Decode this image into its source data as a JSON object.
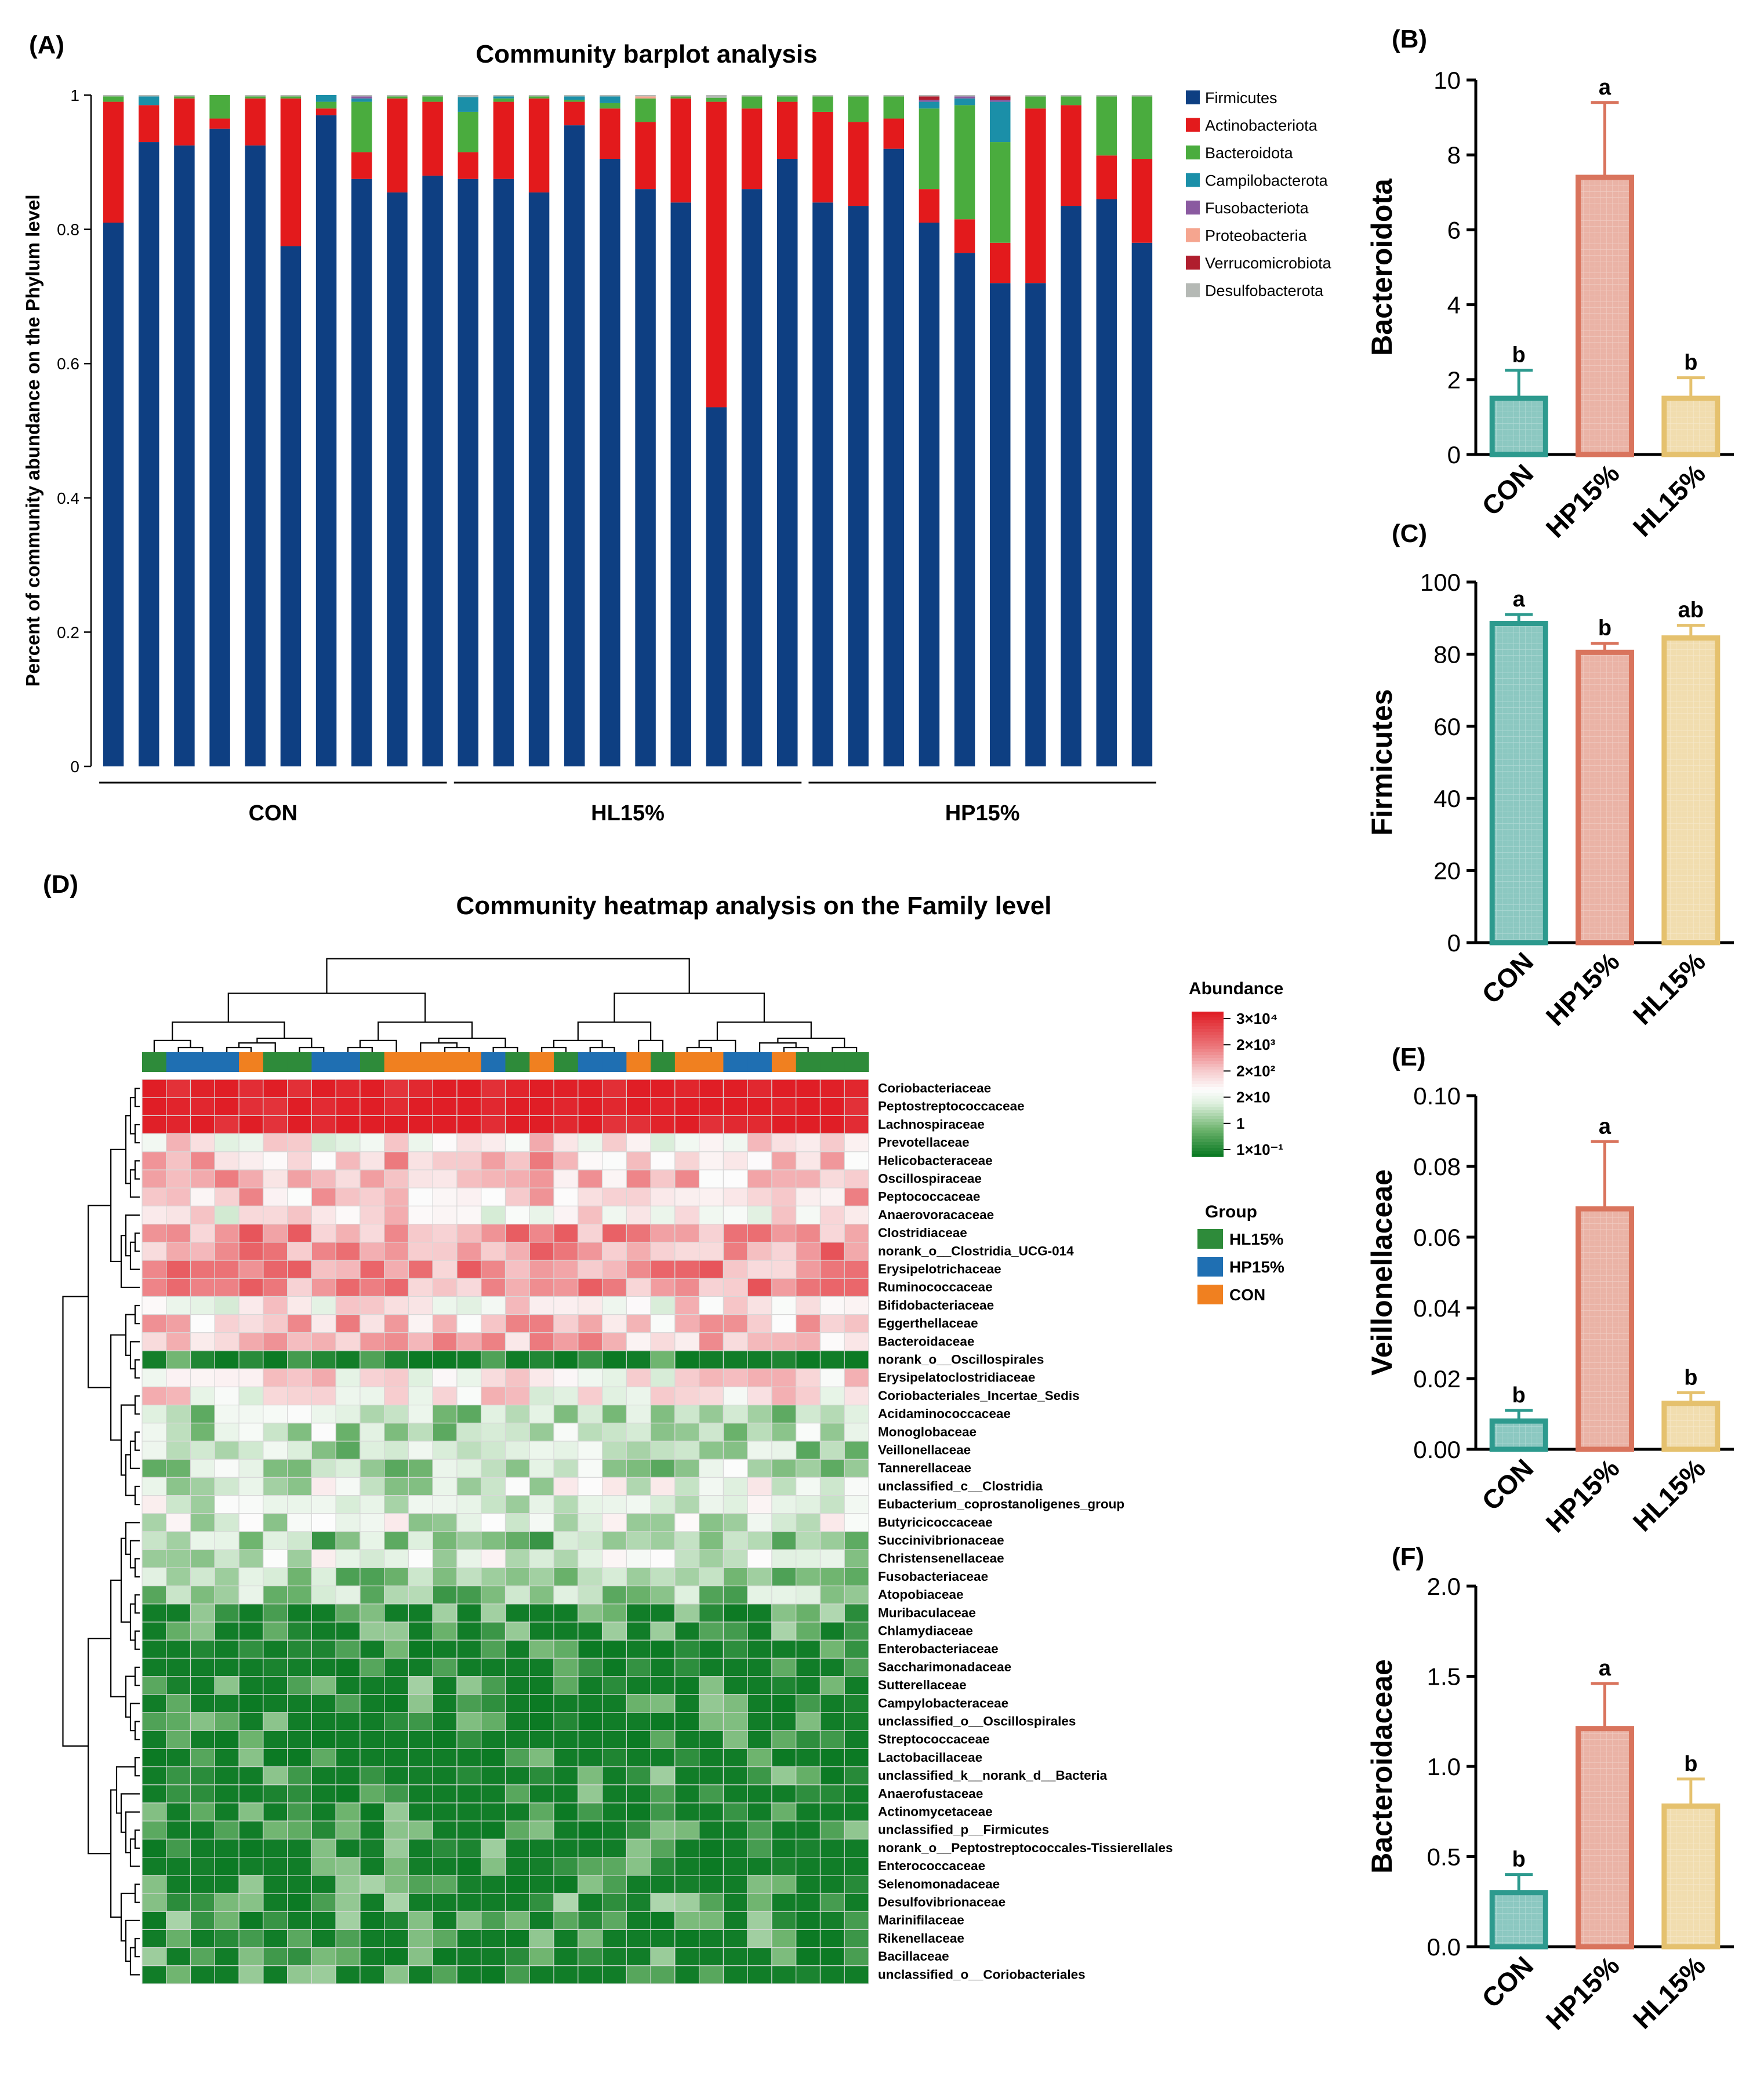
{
  "colors": {
    "firmicutes": "#0e3f82",
    "actino": "#e31a1c",
    "bacteroidota": "#4aac3e",
    "campylo": "#1b8fa8",
    "fuso": "#8a5aa0",
    "proteo": "#f5a58f",
    "verruco": "#b01e2e",
    "desulfo": "#b5b9b5",
    "con": "#2d9a8e",
    "hp": "#d9745d",
    "hl": "#e5c16e",
    "grp_hl": "#2e8b3a",
    "grp_hp": "#1f6fb2",
    "grp_con": "#f08020"
  },
  "chart_data": [
    {
      "panel": "(A)",
      "type": "bar",
      "stacked": true,
      "title": "Community barplot analysis",
      "ylabel": "Percent of community abundance on the Phylum level",
      "ylim": [
        0,
        1
      ],
      "yticks": [
        "0",
        "0.2",
        "0.4",
        "0.6",
        "0.8",
        "1"
      ],
      "groups": [
        "CON",
        "HL15%",
        "HP15%"
      ],
      "group_sizes": [
        10,
        10,
        10
      ],
      "legend": [
        "Firmicutes",
        "Actinobacteriota",
        "Bacteroidota",
        "Campilobacterota",
        "Fusobacteriota",
        "Proteobacteria",
        "Verrucomicrobiota",
        "Desulfobacterota"
      ],
      "series": [
        {
          "name": "Firmicutes",
          "values": [
            0.81,
            0.93,
            0.925,
            0.95,
            0.925,
            0.775,
            0.97,
            0.875,
            0.855,
            0.88,
            0.875,
            0.875,
            0.855,
            0.955,
            0.905,
            0.86,
            0.84,
            0.535,
            0.86,
            0.905,
            0.84,
            0.835,
            0.92,
            0.81,
            0.765,
            0.72,
            0.72,
            0.835,
            0.845,
            0.78
          ]
        },
        {
          "name": "Actinobacteriota",
          "values": [
            0.18,
            0.055,
            0.07,
            0.015,
            0.07,
            0.22,
            0.01,
            0.04,
            0.14,
            0.11,
            0.04,
            0.115,
            0.14,
            0.035,
            0.075,
            0.1,
            0.155,
            0.455,
            0.12,
            0.085,
            0.135,
            0.125,
            0.045,
            0.05,
            0.05,
            0.06,
            0.26,
            0.15,
            0.065,
            0.125
          ]
        },
        {
          "name": "Bacteroidota",
          "values": [
            0.008,
            0.0,
            0.003,
            0.035,
            0.003,
            0.003,
            0.01,
            0.075,
            0.003,
            0.008,
            0.06,
            0.005,
            0.003,
            0.003,
            0.008,
            0.035,
            0.003,
            0.006,
            0.018,
            0.008,
            0.023,
            0.038,
            0.033,
            0.12,
            0.17,
            0.15,
            0.018,
            0.013,
            0.088,
            0.093
          ]
        },
        {
          "name": "Campilobacterota",
          "values": [
            0.0,
            0.013,
            0.0,
            0.0,
            0.0,
            0.0,
            0.01,
            0.005,
            0.0,
            0.0,
            0.022,
            0.003,
            0.0,
            0.005,
            0.01,
            0.0,
            0.0,
            0.0,
            0.0,
            0.0,
            0.0,
            0.0,
            0.0,
            0.01,
            0.01,
            0.06,
            0.0,
            0.0,
            0.0,
            0.0
          ]
        },
        {
          "name": "Fusobacteriota",
          "values": [
            0.0,
            0.0,
            0.0,
            0.0,
            0.0,
            0.0,
            0.0,
            0.003,
            0.0,
            0.0,
            0.0,
            0.0,
            0.0,
            0.0,
            0.0,
            0.0,
            0.0,
            0.0,
            0.0,
            0.0,
            0.0,
            0.0,
            0.0,
            0.003,
            0.003,
            0.003,
            0.0,
            0.0,
            0.0,
            0.0
          ]
        },
        {
          "name": "Proteobacteria",
          "values": [
            0.0,
            0.0,
            0.0,
            0.0,
            0.0,
            0.0,
            0.0,
            0.0,
            0.0,
            0.0,
            0.0,
            0.0,
            0.0,
            0.0,
            0.0,
            0.003,
            0.0,
            0.0,
            0.0,
            0.0,
            0.0,
            0.0,
            0.0,
            0.0,
            0.0,
            0.0,
            0.0,
            0.0,
            0.0,
            0.0
          ]
        },
        {
          "name": "Verrucomicrobiota",
          "values": [
            0.0,
            0.0,
            0.0,
            0.0,
            0.0,
            0.0,
            0.0,
            0.0,
            0.0,
            0.0,
            0.0,
            0.0,
            0.0,
            0.0,
            0.0,
            0.0,
            0.0,
            0.0,
            0.0,
            0.0,
            0.0,
            0.0,
            0.0,
            0.005,
            0.0,
            0.005,
            0.0,
            0.0,
            0.0,
            0.0
          ]
        },
        {
          "name": "Desulfobacterota",
          "values": [
            0.002,
            0.002,
            0.002,
            0.0,
            0.002,
            0.002,
            0.0,
            0.002,
            0.002,
            0.002,
            0.003,
            0.002,
            0.002,
            0.002,
            0.002,
            0.002,
            0.002,
            0.004,
            0.002,
            0.002,
            0.002,
            0.002,
            0.002,
            0.002,
            0.002,
            0.002,
            0.002,
            0.002,
            0.002,
            0.002
          ]
        }
      ]
    },
    {
      "panel": "(B)",
      "type": "bar",
      "ylabel": "Bacteroidota",
      "categories": [
        "CON",
        "HP15%",
        "HL15%"
      ],
      "values": [
        1.5,
        7.4,
        1.5
      ],
      "errors": [
        0.75,
        2.0,
        0.55
      ],
      "letters": [
        "b",
        "a",
        "b"
      ],
      "ylim": [
        0,
        10
      ],
      "yticks": [
        "0",
        "2",
        "4",
        "6",
        "8",
        "10"
      ]
    },
    {
      "panel": "(C)",
      "type": "bar",
      "ylabel": "Firmicutes",
      "categories": [
        "CON",
        "HP15%",
        "HL15%"
      ],
      "values": [
        88.5,
        80.5,
        84.5
      ],
      "errors": [
        2.5,
        2.5,
        3.5
      ],
      "letters": [
        "a",
        "b",
        "ab"
      ],
      "ylim": [
        0,
        100
      ],
      "yticks": [
        "0",
        "20",
        "40",
        "60",
        "80",
        "100"
      ]
    },
    {
      "panel": "(E)",
      "type": "bar",
      "ylabel": "Veillonellaceae",
      "categories": [
        "CON",
        "HP15%",
        "HL15%"
      ],
      "values": [
        0.008,
        0.068,
        0.013
      ],
      "errors": [
        0.003,
        0.019,
        0.003
      ],
      "letters": [
        "b",
        "a",
        "b"
      ],
      "ylim": [
        0,
        0.1
      ],
      "yticks": [
        "0.00",
        "0.02",
        "0.04",
        "0.06",
        "0.08",
        "0.10"
      ]
    },
    {
      "panel": "(F)",
      "type": "bar",
      "ylabel": "Bacteroidaceae",
      "categories": [
        "CON",
        "HP15%",
        "HL15%"
      ],
      "values": [
        0.3,
        1.21,
        0.78
      ],
      "errors": [
        0.1,
        0.25,
        0.15
      ],
      "letters": [
        "b",
        "a",
        "b"
      ],
      "ylim": [
        0,
        2
      ],
      "yticks": [
        "0.0",
        "0.5",
        "1.0",
        "1.5",
        "2.0"
      ]
    },
    {
      "panel": "(D)",
      "type": "heatmap",
      "title": "Community heatmap analysis on the Family level",
      "legend_title": "Abundance",
      "legend_ticks": [
        "3×10⁴",
        "2×10³",
        "2×10²",
        "2×10",
        "1",
        "1×10⁻¹"
      ],
      "group_legend_title": "Group",
      "group_legend": [
        "HL15%",
        "HP15%",
        "CON"
      ],
      "column_groups": [
        "HL15%",
        "HP15%",
        "HP15%",
        "HP15%",
        "CON",
        "HL15%",
        "HL15%",
        "HP15%",
        "HP15%",
        "HL15%",
        "CON",
        "CON",
        "CON",
        "CON",
        "HP15%",
        "HL15%",
        "CON",
        "HL15%",
        "HP15%",
        "HP15%",
        "CON",
        "HL15%",
        "CON",
        "CON",
        "HP15%",
        "HP15%",
        "CON",
        "HL15%",
        "HL15%",
        "HL15%"
      ],
      "rows": [
        "Coriobacteriaceae",
        "Peptostreptococcaceae",
        "Lachnospiraceae",
        "Prevotellaceae",
        "Helicobacteraceae",
        "Oscillospiraceae",
        "Peptococcaceae",
        "Anaerovoracaceae",
        "Clostridiaceae",
        "norank_o__Clostridia_UCG-014",
        "Erysipelotrichaceae",
        "Ruminococcaceae",
        "Bifidobacteriaceae",
        "Eggerthellaceae",
        "Bacteroidaceae",
        "norank_o__Oscillospirales",
        "Erysipelatoclostridiaceae",
        "Coriobacteriales_Incertae_Sedis",
        "Acidaminococcaceae",
        "Monoglobaceae",
        "Veillonellaceae",
        "Tannerellaceae",
        "unclassified_c__Clostridia",
        "Eubacterium_coprostanoligenes_group",
        "Butyricicoccaceae",
        "Succinivibrionaceae",
        "Christensenellaceae",
        "Fusobacteriaceae",
        "Atopobiaceae",
        "Muribaculaceae",
        "Chlamydiaceae",
        "Enterobacteriaceae",
        "Saccharimonadaceae",
        "Sutterellaceae",
        "Campylobacteraceae",
        "unclassified_o__Oscillospirales",
        "Streptococcaceae",
        "Lactobacillaceae",
        "unclassified_k__norank_d__Bacteria",
        "Anaerofustaceae",
        "Actinomycetaceae",
        "unclassified_p__Firmicutes",
        "norank_o__Peptostreptococcales-Tissierellales",
        "Enterococcaceae",
        "Selenomonadaceae",
        "Desulfovibrionaceae",
        "Marinifilaceae",
        "Rikenellaceae",
        "Bacillaceae",
        "unclassified_o__Coriobacteriales"
      ],
      "row_levels": [
        5,
        5,
        5,
        2.5,
        3,
        3,
        3,
        2.5,
        3.5,
        3.5,
        3.5,
        3.5,
        2.5,
        3,
        3,
        0.2,
        2.5,
        2.5,
        1.5,
        1.5,
        1.5,
        1.5,
        1.8,
        1.8,
        1.8,
        1.2,
        1.8,
        1.2,
        1.2,
        0.8,
        0.6,
        0.2,
        0.2,
        0.6,
        0.4,
        0.4,
        0.3,
        0.4,
        0.5,
        0.5,
        0.5,
        0.5,
        0.5,
        0.5,
        0.6,
        0.7,
        0.6,
        0.6,
        0.5,
        0.7
      ]
    }
  ],
  "panel_labels": {
    "a": "(A)",
    "b": "(B)",
    "c": "(C)",
    "d": "(D)",
    "e": "(E)",
    "f": "(F)"
  }
}
